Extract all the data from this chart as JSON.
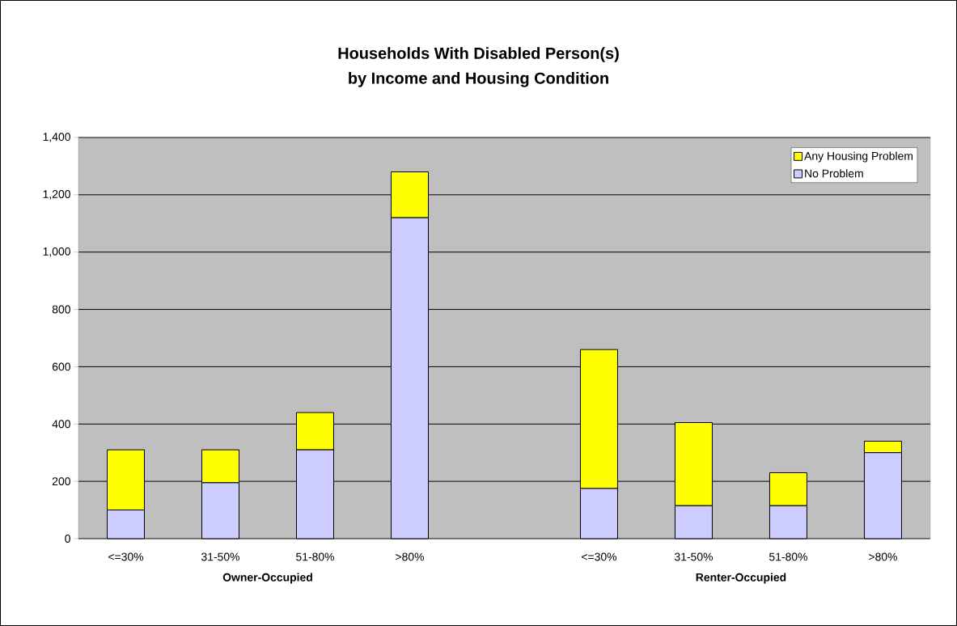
{
  "chart_data": {
    "type": "bar",
    "title": "Households With Disabled Person(s)\nby Income and Housing Condition",
    "categories": [
      "<=30%",
      "31-50%",
      "51-80%",
      ">80%",
      null,
      "<=30%",
      "31-50%",
      "51-80%",
      ">80%"
    ],
    "series": [
      {
        "name": "No Problem",
        "color": "#ccccff",
        "values": [
          100,
          195,
          310,
          1120,
          null,
          175,
          115,
          115,
          300
        ]
      },
      {
        "name": "Any Housing Problem",
        "color": "#ffff00",
        "values": [
          210,
          115,
          130,
          160,
          null,
          485,
          290,
          115,
          40
        ]
      }
    ],
    "stacked": true,
    "ylim": [
      0,
      1400
    ],
    "yticks": [
      {
        "value": 0,
        "label": "0"
      },
      {
        "value": 200,
        "label": "200"
      },
      {
        "value": 400,
        "label": "400"
      },
      {
        "value": 600,
        "label": "600"
      },
      {
        "value": 800,
        "label": "800"
      },
      {
        "value": 1000,
        "label": "1,000"
      },
      {
        "value": 1200,
        "label": "1,200"
      },
      {
        "value": 1400,
        "label": "1,400"
      }
    ],
    "grid": "y",
    "legend": "top right",
    "annotations": [
      "Owner-Occupied",
      "Renter-Occupied"
    ]
  }
}
